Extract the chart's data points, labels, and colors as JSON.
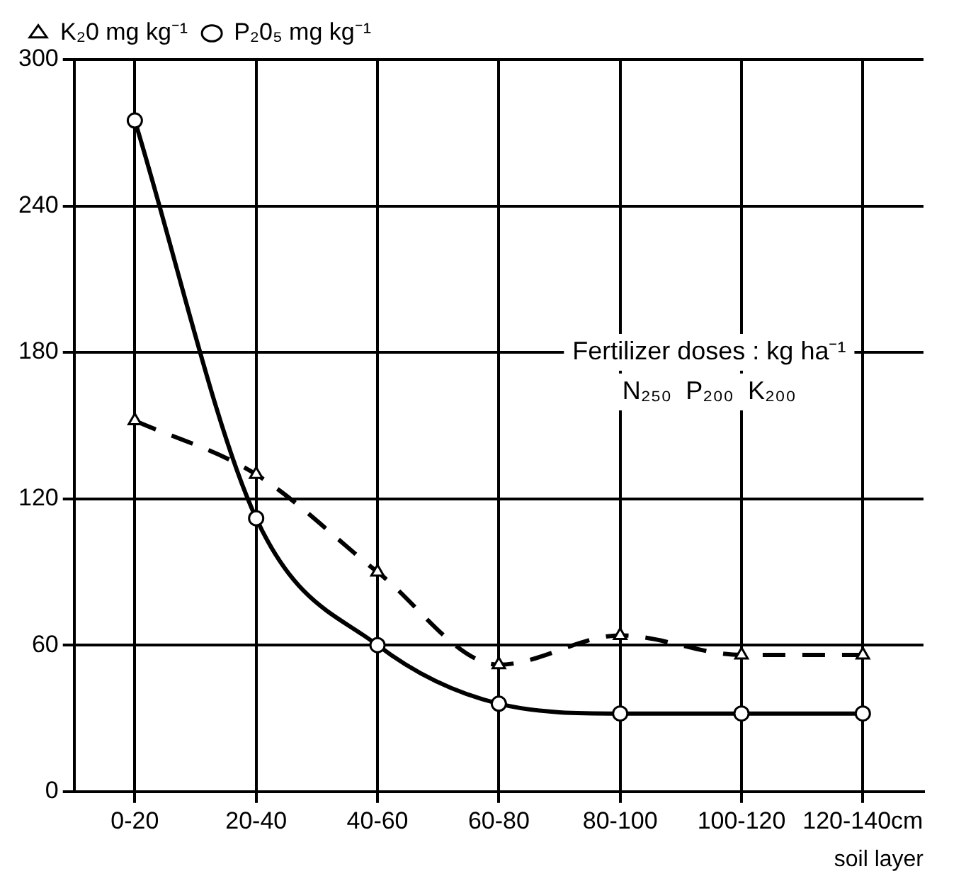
{
  "chart_data": {
    "type": "line",
    "xlabel": "soil layer",
    "categories": [
      "0-20",
      "20-40",
      "40-60",
      "60-80",
      "80-100",
      "100-120",
      "120-140cm"
    ],
    "series": [
      {
        "name": "K₂0 mg kg⁻¹",
        "color": "#000000",
        "marker": "triangle",
        "line_style": "dashed",
        "values": [
          152,
          130,
          90,
          52,
          64,
          56,
          56
        ]
      },
      {
        "name": "P₂0₅ mg kg⁻¹",
        "color": "#000000",
        "marker": "circle",
        "line_style": "solid",
        "values": [
          275,
          112,
          60,
          36,
          32,
          32,
          32
        ]
      }
    ],
    "ylim": [
      0,
      300
    ],
    "yticks": [
      0,
      60,
      120,
      180,
      240,
      300
    ],
    "grid": true,
    "legend": "top left",
    "annotations": [
      "Fertilizer doses : kg ha⁻¹",
      "N₂₅₀  P₂₀₀  K₂₀₀"
    ]
  }
}
